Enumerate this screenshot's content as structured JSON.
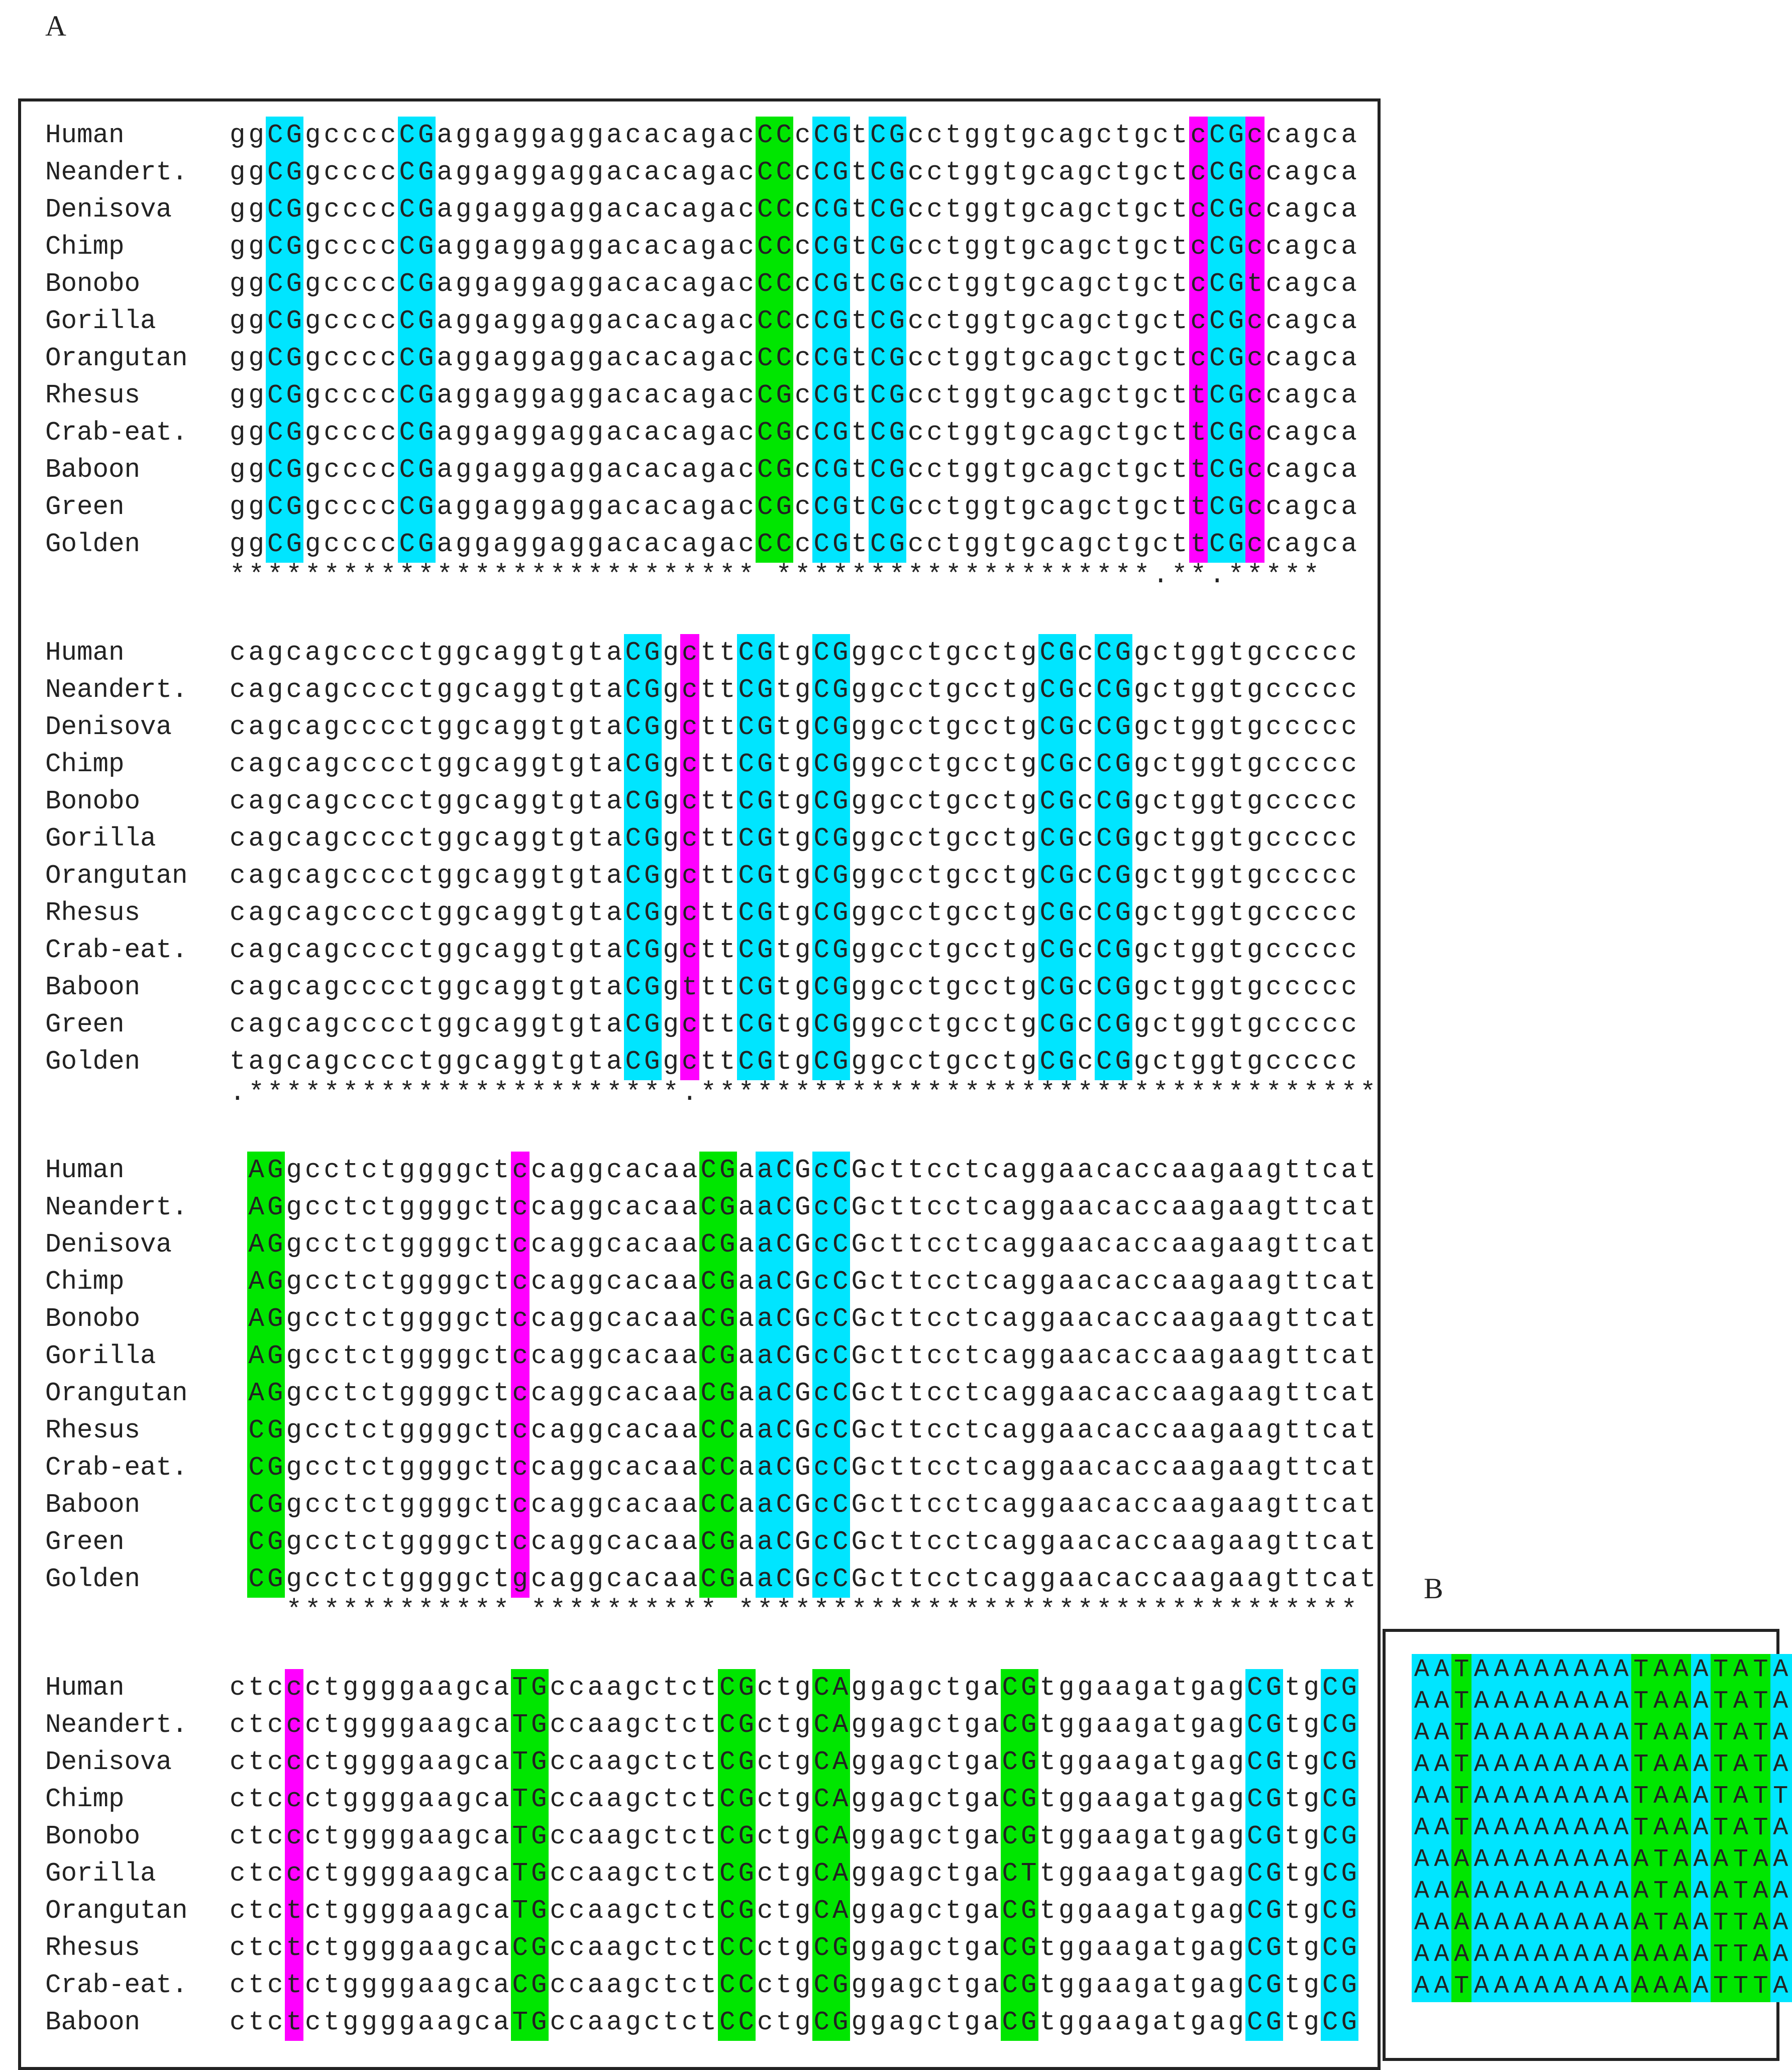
{
  "panel_a": {
    "label": "A",
    "blocks": [
      {
        "rows": [
          {
            "name": "Human",
            "seq": "ggCGgccccCGaggaggaggacacagacCCcCGtCGcctggtgcagctgctcCGccagca"
          },
          {
            "name": "Neandert.",
            "seq": "ggCGgccccCGaggaggaggacacagacCCcCGtCGcctggtgcagctgctcCGccagca"
          },
          {
            "name": "Denisova",
            "seq": "ggCGgccccCGaggaggaggacacagacCCcCGtCGcctggtgcagctgctcCGccagca"
          },
          {
            "name": "Chimp",
            "seq": "ggCGgccccCGaggaggaggacacagacCCcCGtCGcctggtgcagctgctcCGccagca"
          },
          {
            "name": "Bonobo",
            "seq": "ggCGgccccCGaggaggaggacacagacCCcCGtCGcctggtgcagctgctcCGtcagca"
          },
          {
            "name": "Gorilla",
            "seq": "ggCGgccccCGaggaggaggacacagacCCcCGtCGcctggtgcagctgctcCGccagca"
          },
          {
            "name": "Orangutan",
            "seq": "ggCGgccccCGaggaggaggacacagacCCcCGtCGcctggtgcagctgctcCGccagca"
          },
          {
            "name": "Rhesus",
            "seq": "ggCGgccccCGaggaggaggacacagacCGcCGtCGcctggtgcagctgcttCGccagca"
          },
          {
            "name": "Crab-eat.",
            "seq": "ggCGgccccCGaggaggaggacacagacCGcCGtCGcctggtgcagctgcttCGccagca"
          },
          {
            "name": "Baboon",
            "seq": "ggCGgccccCGaggaggaggacacagacCGcCGtCGcctggtgcagctgcttCGccagca"
          },
          {
            "name": "Green",
            "seq": "ggCGgccccCGaggaggaggacacagacCGcCGtCGcctggtgcagctgcttCGccagca"
          },
          {
            "name": "Golden",
            "seq": "ggCGgccccCGaggaggaggacacagacCCcCGtCGcctggtgcagctgcttCGccagca"
          }
        ],
        "consensus": "**************************** ********************.**.*****"
      },
      {
        "rows": [
          {
            "name": "Human",
            "seq": "cagcagcccctggcaggtgtaCGgcttCGtgCGggcctgcctgCGcCGgctggtgccccc"
          },
          {
            "name": "Neandert.",
            "seq": "cagcagcccctggcaggtgtaCGgcttCGtgCGggcctgcctgCGcCGgctggtgccccc"
          },
          {
            "name": "Denisova",
            "seq": "cagcagcccctggcaggtgtaCGgcttCGtgCGggcctgcctgCGcCGgctggtgccccc"
          },
          {
            "name": "Chimp",
            "seq": "cagcagcccctggcaggtgtaCGgcttCGtgCGggcctgcctgCGcCGgctggtgccccc"
          },
          {
            "name": "Bonobo",
            "seq": "cagcagcccctggcaggtgtaCGgcttCGtgCGggcctgcctgCGcCGgctggtgccccc"
          },
          {
            "name": "Gorilla",
            "seq": "cagcagcccctggcaggtgtaCGgcttCGtgCGggcctgcctgCGcCGgctggtgccccc"
          },
          {
            "name": "Orangutan",
            "seq": "cagcagcccctggcaggtgtaCGgcttCGtgCGggcctgcctgCGcCGgctggtgccccc"
          },
          {
            "name": "Rhesus",
            "seq": "cagcagcccctggcaggtgtaCGgcttCGtgCGggcctgcctgCGcCGgctggtgccccc"
          },
          {
            "name": "Crab-eat.",
            "seq": "cagcagcccctggcaggtgtaCGgcttCGtgCGggcctgcctgCGcCGgctggtgccccc"
          },
          {
            "name": "Baboon",
            "seq": "cagcagcccctggcaggtgtaCGgtttCGtgCGggcctgcctgCGcCGgctggtgccccc"
          },
          {
            "name": "Green",
            "seq": "cagcagcccctggcaggtgtaCGgcttCGtgCGggcctgcctgCGcCGgctggtgccccc"
          },
          {
            "name": "Golden",
            "seq": "tagcagcccctggcaggtgtaCGgcttCGtgCGggcctgcctgCGcCGgctggtgccccc"
          }
        ],
        "consensus": ".***********************.************************************"
      },
      {
        "rows": [
          {
            "name": "Human",
            "seq": " AGgcctctggggctccaggcacaaCGaaCGcCGcttcctcaggaacaccaagaagttcat"
          },
          {
            "name": "Neandert.",
            "seq": " AGgcctctggggctccaggcacaaCGaaCGcCGcttcctcaggaacaccaagaagttcat"
          },
          {
            "name": "Denisova",
            "seq": " AGgcctctggggctccaggcacaaCGaaCGcCGcttcctcaggaacaccaagaagttcat"
          },
          {
            "name": "Chimp",
            "seq": " AGgcctctggggctccaggcacaaCGaaCGcCGcttcctcaggaacaccaagaagttcat"
          },
          {
            "name": "Bonobo",
            "seq": " AGgcctctggggctccaggcacaaCGaaCGcCGcttcctcaggaacaccaagaagttcat"
          },
          {
            "name": "Gorilla",
            "seq": " AGgcctctggggctccaggcacaaCGaaCGcCGcttcctcaggaacaccaagaagttcat"
          },
          {
            "name": "Orangutan",
            "seq": " AGgcctctggggctccaggcacaaCGaaCGcCGcttcctcaggaacaccaagaagttcat"
          },
          {
            "name": "Rhesus",
            "seq": " CGgcctctggggctccaggcacaaCCaaCGcCGcttcctcaggaacaccaagaagttcat"
          },
          {
            "name": "Crab-eat.",
            "seq": " CGgcctctggggctccaggcacaaCCaaCGcCGcttcctcaggaacaccaagaagttcat"
          },
          {
            "name": "Baboon",
            "seq": " CGgcctctggggctccaggcacaaCCaaCGcCGcttcctcaggaacaccaagaagttcat"
          },
          {
            "name": "Green",
            "seq": " CGgcctctggggctccaggcacaaCGaaCGcCGcttcctcaggaacaccaagaagttcat"
          },
          {
            "name": "Golden",
            "seq": " CGgcctctggggctgcaggcacaaCGaaCGcCGcttcctcaggaacaccaagaagttcat"
          }
        ],
        "consensus": "   ************ ********** *********************************"
      },
      {
        "rows": [
          {
            "name": "Human",
            "seq": "ctccctggggaagcaTGccaagctctCGctgCAggagctgaCGtggaagatgagCGtgCG"
          },
          {
            "name": "Neandert.",
            "seq": "ctccctggggaagcaTGccaagctctCGctgCAggagctgaCGtggaagatgagCGtgCG"
          },
          {
            "name": "Denisova",
            "seq": "ctccctggggaagcaTGccaagctctCGctgCAggagctgaCGtggaagatgagCGtgCG"
          },
          {
            "name": "Chimp",
            "seq": "ctccctggggaagcaTGccaagctctCGctgCAggagctgaCGtggaagatgagCGtgCG"
          },
          {
            "name": "Bonobo",
            "seq": "ctccctggggaagcaTGccaagctctCGctgCAggagctgaCGtggaagatgagCGtgCG"
          },
          {
            "name": "Gorilla",
            "seq": "ctccctggggaagcaTGccaagctctCGctgCAggagctgaCTtggaagatgagCGtgCG"
          },
          {
            "name": "Orangutan",
            "seq": "ctctctggggaagcaTGccaagctctCGctgCAggagctgaCGtggaagatgagCGtgCG"
          },
          {
            "name": "Rhesus",
            "seq": "ctctctggggaagcaCGccaagctctCCctgCGggagctgaCGtggaagatgagCGtgCG"
          },
          {
            "name": "Crab-eat.",
            "seq": "ctctctggggaagcaCGccaagctctCCctgCGggagctgaCGtggaagatgagCGtgCG"
          },
          {
            "name": "Baboon",
            "seq": "ctctctggggaagcaTGccaagctctCCctgCGggagctgaCGtggaagatgagCGtgCG"
          }
        ],
        "consensus": ""
      }
    ],
    "highlights": [
      {
        "cyan": [
          2,
          3,
          9,
          10,
          31,
          32,
          34,
          35,
          52,
          53
        ],
        "green": [
          28,
          29
        ],
        "magenta": [
          51,
          54
        ]
      },
      {
        "cyan": [
          21,
          22,
          27,
          28,
          31,
          32,
          43,
          44,
          46,
          47
        ],
        "green": [],
        "magenta": [
          24
        ]
      },
      {
        "cyan": [
          28,
          29,
          31,
          32
        ],
        "green": [
          1,
          2,
          25,
          26
        ],
        "magenta": [
          15
        ]
      },
      {
        "cyan": [
          54,
          55,
          58,
          59
        ],
        "green": [
          15,
          16,
          26,
          27,
          31,
          32,
          41,
          42
        ],
        "magenta": [
          3
        ]
      }
    ]
  },
  "panel_b": {
    "label": "B",
    "rows": [
      "AATAAAAAAAATAAATATAAA",
      "AATAAAAAAAATAAATATAAA",
      "AATAAAAAAAATAAATATAAA",
      "AATAAAAAAAATAAATATAAA",
      "AATAAAAAAAATAAATATTAA",
      "AATAAAAAAAATAAATATAAA",
      "AAAAAAAAAAAATAAATAAAA",
      "AAAAAAAAAAAATAAATAAAA",
      "AAAAAAAAAAAATAATTAAAA",
      "AAAAAAAAAAAAAAATTAAAA",
      "AATAAAAAAAAAAAATTTAAA"
    ],
    "green_columns": [
      2,
      11,
      12,
      13,
      15,
      16,
      17
    ]
  },
  "colors": {
    "cyan": "#00e5ff",
    "green": "#00e600",
    "magenta": "#ff00ff"
  }
}
